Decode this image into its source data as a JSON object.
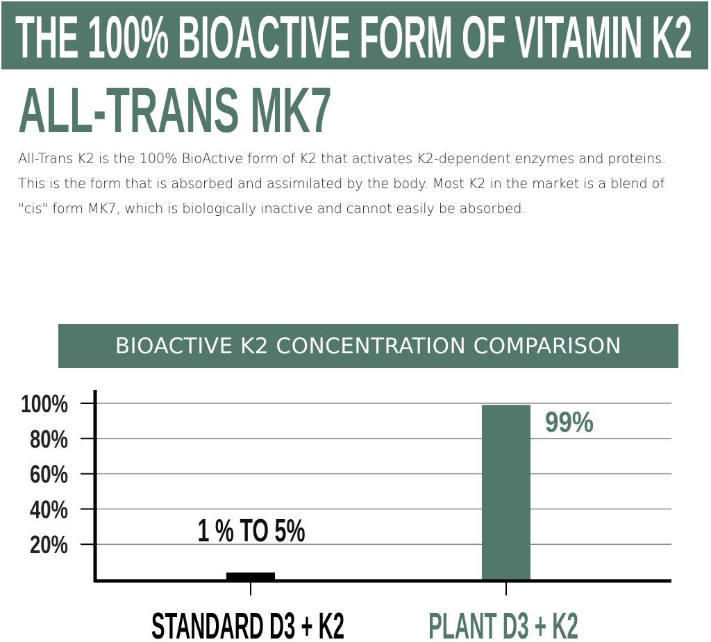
{
  "header": {
    "banner_title": "THE 100% BIOACTIVE FORM OF VITAMIN K2",
    "heading": "ALL-TRANS MK7",
    "description": "All-Trans K2 is the 100% BioActive form of K2 that activates K2-dependent enzymes and proteins. This is the form that is absorbed and assimilated by the body. Most K2 in the market is a blend of \"cis\" form MK7, which is biologically inactive and cannot easily be absorbed."
  },
  "colors": {
    "accent": "#52776b",
    "standard_bar": "#000000",
    "text": "#222222"
  },
  "chart_data": {
    "type": "bar",
    "title": "BIOACTIVE K2 CONCENTRATION COMPARISON",
    "categories": [
      "STANDARD D3 + K2",
      "PLANT D3 + K2"
    ],
    "values": [
      4,
      99
    ],
    "data_labels": [
      "1 % TO 5%",
      "99%"
    ],
    "bar_colors": [
      "#000000",
      "#52776b"
    ],
    "yticks": [
      "20%",
      "40%",
      "60%",
      "80%",
      "100%"
    ],
    "ytick_values": [
      20,
      40,
      60,
      80,
      100
    ],
    "ylim": [
      0,
      100
    ],
    "xlabel": "",
    "ylabel": "",
    "grid": true
  }
}
